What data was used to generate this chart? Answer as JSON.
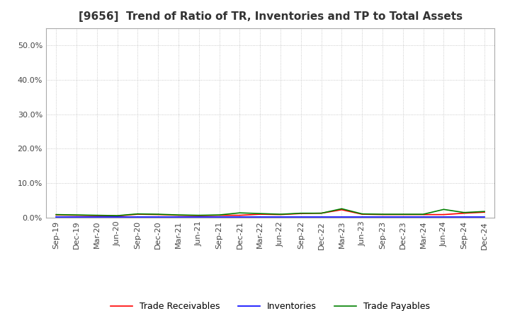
{
  "title": "[9656]  Trend of Ratio of TR, Inventories and TP to Total Assets",
  "x_labels": [
    "Sep-19",
    "Dec-19",
    "Mar-20",
    "Jun-20",
    "Sep-20",
    "Dec-20",
    "Mar-21",
    "Jun-21",
    "Sep-21",
    "Dec-21",
    "Mar-22",
    "Jun-22",
    "Sep-22",
    "Dec-22",
    "Mar-23",
    "Jun-23",
    "Sep-23",
    "Dec-23",
    "Mar-24",
    "Jun-24",
    "Sep-24",
    "Dec-24"
  ],
  "trade_receivables": [
    0.008,
    0.007,
    0.006,
    0.005,
    0.01,
    0.009,
    0.007,
    0.006,
    0.007,
    0.007,
    0.01,
    0.009,
    0.012,
    0.013,
    0.023,
    0.01,
    0.009,
    0.009,
    0.009,
    0.009,
    0.013,
    0.016
  ],
  "inventories": [
    0.002,
    0.002,
    0.002,
    0.002,
    0.002,
    0.002,
    0.002,
    0.002,
    0.002,
    0.002,
    0.002,
    0.002,
    0.002,
    0.002,
    0.002,
    0.002,
    0.002,
    0.002,
    0.002,
    0.002,
    0.002,
    0.002
  ],
  "trade_payables": [
    0.009,
    0.008,
    0.007,
    0.006,
    0.011,
    0.01,
    0.008,
    0.007,
    0.008,
    0.014,
    0.012,
    0.01,
    0.013,
    0.013,
    0.026,
    0.011,
    0.01,
    0.01,
    0.01,
    0.024,
    0.015,
    0.018
  ],
  "line_colors": {
    "trade_receivables": "#ff0000",
    "inventories": "#0000ff",
    "trade_payables": "#008000"
  },
  "legend_labels": [
    "Trade Receivables",
    "Inventories",
    "Trade Payables"
  ],
  "ylim": [
    0.0,
    0.55
  ],
  "yticks": [
    0.0,
    0.1,
    0.2,
    0.3,
    0.4,
    0.5
  ],
  "ytick_labels": [
    "0.0%",
    "10.0%",
    "20.0%",
    "30.0%",
    "40.0%",
    "50.0%"
  ],
  "background_color": "#ffffff",
  "plot_bg_color": "#ffffff",
  "grid_color": "#aaaaaa",
  "title_fontsize": 11,
  "tick_fontsize": 8,
  "legend_fontsize": 9
}
